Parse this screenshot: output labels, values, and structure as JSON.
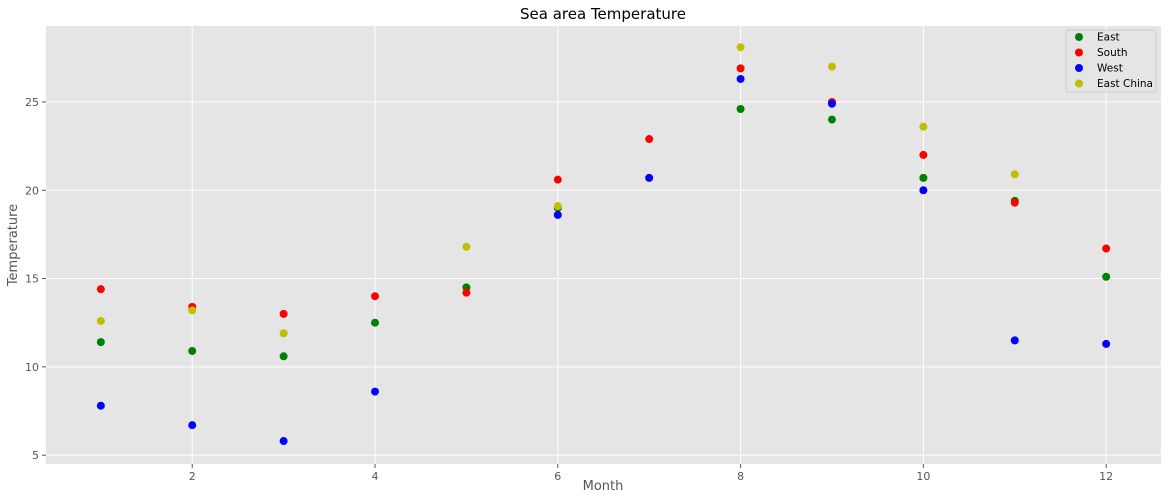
{
  "chart_data": {
    "type": "scatter",
    "title": "Sea area Temperature",
    "xlabel": "Month",
    "ylabel": "Temperature",
    "xlim": [
      0.4,
      12.6
    ],
    "ylim": [
      4.5,
      29.3
    ],
    "xticks": [
      2,
      4,
      6,
      8,
      10,
      12
    ],
    "yticks": [
      5,
      10,
      15,
      20,
      25
    ],
    "grid": true,
    "legend_position": "top-right",
    "series": [
      {
        "name": "East",
        "color": "#008000",
        "points": [
          [
            1,
            11.4
          ],
          [
            2,
            10.9
          ],
          [
            3,
            10.6
          ],
          [
            4,
            12.5
          ],
          [
            5,
            14.5
          ],
          [
            6,
            19.0
          ],
          [
            8,
            24.6
          ],
          [
            9,
            24.0
          ],
          [
            10,
            20.7
          ],
          [
            11,
            19.4
          ],
          [
            12,
            15.1
          ]
        ]
      },
      {
        "name": "South",
        "color": "#ff0000",
        "points": [
          [
            1,
            14.4
          ],
          [
            2,
            13.4
          ],
          [
            3,
            13.0
          ],
          [
            4,
            14.0
          ],
          [
            5,
            14.2
          ],
          [
            6,
            20.6
          ],
          [
            7,
            22.9
          ],
          [
            8,
            26.9
          ],
          [
            9,
            25.0
          ],
          [
            10,
            22.0
          ],
          [
            11,
            19.3
          ],
          [
            12,
            16.7
          ]
        ]
      },
      {
        "name": "West",
        "color": "#0000ff",
        "points": [
          [
            1,
            7.8
          ],
          [
            2,
            6.7
          ],
          [
            3,
            5.8
          ],
          [
            4,
            8.6
          ],
          [
            6,
            18.6
          ],
          [
            7,
            20.7
          ],
          [
            8,
            26.3
          ],
          [
            9,
            24.9
          ],
          [
            10,
            20.0
          ],
          [
            11,
            11.5
          ],
          [
            12,
            11.3
          ]
        ]
      },
      {
        "name": "East China",
        "color": "#bfbf00",
        "points": [
          [
            1,
            12.6
          ],
          [
            2,
            13.2
          ],
          [
            3,
            11.9
          ],
          [
            5,
            16.8
          ],
          [
            6,
            19.1
          ],
          [
            8,
            28.1
          ],
          [
            9,
            27.0
          ],
          [
            10,
            23.6
          ],
          [
            11,
            20.9
          ]
        ]
      }
    ]
  }
}
